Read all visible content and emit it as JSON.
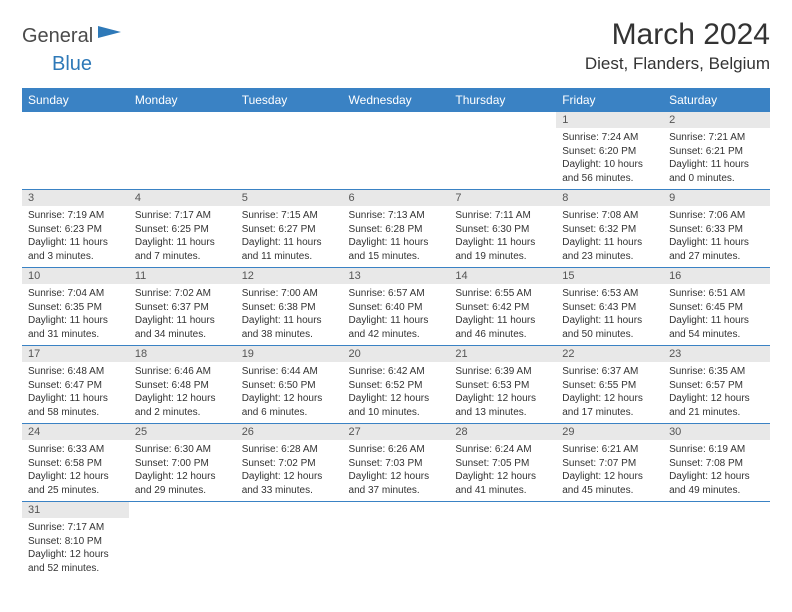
{
  "logo": {
    "part1": "General",
    "part2": "Blue"
  },
  "title": "March 2024",
  "location": "Diest, Flanders, Belgium",
  "colors": {
    "header_bg": "#3a82c4",
    "header_text": "#ffffff",
    "daynum_bg": "#e8e8e8",
    "border": "#3a82c4",
    "logo_gray": "#4a4a4a",
    "logo_blue": "#2e79b8"
  },
  "weekdays": [
    "Sunday",
    "Monday",
    "Tuesday",
    "Wednesday",
    "Thursday",
    "Friday",
    "Saturday"
  ],
  "weeks": [
    [
      null,
      null,
      null,
      null,
      null,
      {
        "n": "1",
        "sr": "Sunrise: 7:24 AM",
        "ss": "Sunset: 6:20 PM",
        "d1": "Daylight: 10 hours",
        "d2": "and 56 minutes."
      },
      {
        "n": "2",
        "sr": "Sunrise: 7:21 AM",
        "ss": "Sunset: 6:21 PM",
        "d1": "Daylight: 11 hours",
        "d2": "and 0 minutes."
      }
    ],
    [
      {
        "n": "3",
        "sr": "Sunrise: 7:19 AM",
        "ss": "Sunset: 6:23 PM",
        "d1": "Daylight: 11 hours",
        "d2": "and 3 minutes."
      },
      {
        "n": "4",
        "sr": "Sunrise: 7:17 AM",
        "ss": "Sunset: 6:25 PM",
        "d1": "Daylight: 11 hours",
        "d2": "and 7 minutes."
      },
      {
        "n": "5",
        "sr": "Sunrise: 7:15 AM",
        "ss": "Sunset: 6:27 PM",
        "d1": "Daylight: 11 hours",
        "d2": "and 11 minutes."
      },
      {
        "n": "6",
        "sr": "Sunrise: 7:13 AM",
        "ss": "Sunset: 6:28 PM",
        "d1": "Daylight: 11 hours",
        "d2": "and 15 minutes."
      },
      {
        "n": "7",
        "sr": "Sunrise: 7:11 AM",
        "ss": "Sunset: 6:30 PM",
        "d1": "Daylight: 11 hours",
        "d2": "and 19 minutes."
      },
      {
        "n": "8",
        "sr": "Sunrise: 7:08 AM",
        "ss": "Sunset: 6:32 PM",
        "d1": "Daylight: 11 hours",
        "d2": "and 23 minutes."
      },
      {
        "n": "9",
        "sr": "Sunrise: 7:06 AM",
        "ss": "Sunset: 6:33 PM",
        "d1": "Daylight: 11 hours",
        "d2": "and 27 minutes."
      }
    ],
    [
      {
        "n": "10",
        "sr": "Sunrise: 7:04 AM",
        "ss": "Sunset: 6:35 PM",
        "d1": "Daylight: 11 hours",
        "d2": "and 31 minutes."
      },
      {
        "n": "11",
        "sr": "Sunrise: 7:02 AM",
        "ss": "Sunset: 6:37 PM",
        "d1": "Daylight: 11 hours",
        "d2": "and 34 minutes."
      },
      {
        "n": "12",
        "sr": "Sunrise: 7:00 AM",
        "ss": "Sunset: 6:38 PM",
        "d1": "Daylight: 11 hours",
        "d2": "and 38 minutes."
      },
      {
        "n": "13",
        "sr": "Sunrise: 6:57 AM",
        "ss": "Sunset: 6:40 PM",
        "d1": "Daylight: 11 hours",
        "d2": "and 42 minutes."
      },
      {
        "n": "14",
        "sr": "Sunrise: 6:55 AM",
        "ss": "Sunset: 6:42 PM",
        "d1": "Daylight: 11 hours",
        "d2": "and 46 minutes."
      },
      {
        "n": "15",
        "sr": "Sunrise: 6:53 AM",
        "ss": "Sunset: 6:43 PM",
        "d1": "Daylight: 11 hours",
        "d2": "and 50 minutes."
      },
      {
        "n": "16",
        "sr": "Sunrise: 6:51 AM",
        "ss": "Sunset: 6:45 PM",
        "d1": "Daylight: 11 hours",
        "d2": "and 54 minutes."
      }
    ],
    [
      {
        "n": "17",
        "sr": "Sunrise: 6:48 AM",
        "ss": "Sunset: 6:47 PM",
        "d1": "Daylight: 11 hours",
        "d2": "and 58 minutes."
      },
      {
        "n": "18",
        "sr": "Sunrise: 6:46 AM",
        "ss": "Sunset: 6:48 PM",
        "d1": "Daylight: 12 hours",
        "d2": "and 2 minutes."
      },
      {
        "n": "19",
        "sr": "Sunrise: 6:44 AM",
        "ss": "Sunset: 6:50 PM",
        "d1": "Daylight: 12 hours",
        "d2": "and 6 minutes."
      },
      {
        "n": "20",
        "sr": "Sunrise: 6:42 AM",
        "ss": "Sunset: 6:52 PM",
        "d1": "Daylight: 12 hours",
        "d2": "and 10 minutes."
      },
      {
        "n": "21",
        "sr": "Sunrise: 6:39 AM",
        "ss": "Sunset: 6:53 PM",
        "d1": "Daylight: 12 hours",
        "d2": "and 13 minutes."
      },
      {
        "n": "22",
        "sr": "Sunrise: 6:37 AM",
        "ss": "Sunset: 6:55 PM",
        "d1": "Daylight: 12 hours",
        "d2": "and 17 minutes."
      },
      {
        "n": "23",
        "sr": "Sunrise: 6:35 AM",
        "ss": "Sunset: 6:57 PM",
        "d1": "Daylight: 12 hours",
        "d2": "and 21 minutes."
      }
    ],
    [
      {
        "n": "24",
        "sr": "Sunrise: 6:33 AM",
        "ss": "Sunset: 6:58 PM",
        "d1": "Daylight: 12 hours",
        "d2": "and 25 minutes."
      },
      {
        "n": "25",
        "sr": "Sunrise: 6:30 AM",
        "ss": "Sunset: 7:00 PM",
        "d1": "Daylight: 12 hours",
        "d2": "and 29 minutes."
      },
      {
        "n": "26",
        "sr": "Sunrise: 6:28 AM",
        "ss": "Sunset: 7:02 PM",
        "d1": "Daylight: 12 hours",
        "d2": "and 33 minutes."
      },
      {
        "n": "27",
        "sr": "Sunrise: 6:26 AM",
        "ss": "Sunset: 7:03 PM",
        "d1": "Daylight: 12 hours",
        "d2": "and 37 minutes."
      },
      {
        "n": "28",
        "sr": "Sunrise: 6:24 AM",
        "ss": "Sunset: 7:05 PM",
        "d1": "Daylight: 12 hours",
        "d2": "and 41 minutes."
      },
      {
        "n": "29",
        "sr": "Sunrise: 6:21 AM",
        "ss": "Sunset: 7:07 PM",
        "d1": "Daylight: 12 hours",
        "d2": "and 45 minutes."
      },
      {
        "n": "30",
        "sr": "Sunrise: 6:19 AM",
        "ss": "Sunset: 7:08 PM",
        "d1": "Daylight: 12 hours",
        "d2": "and 49 minutes."
      }
    ],
    [
      {
        "n": "31",
        "sr": "Sunrise: 7:17 AM",
        "ss": "Sunset: 8:10 PM",
        "d1": "Daylight: 12 hours",
        "d2": "and 52 minutes."
      },
      null,
      null,
      null,
      null,
      null,
      null
    ]
  ]
}
